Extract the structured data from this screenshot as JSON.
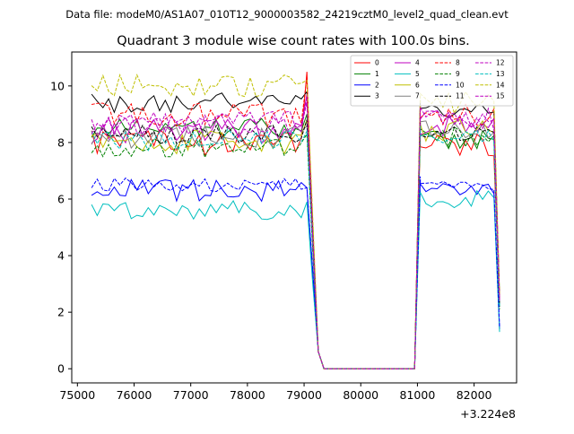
{
  "suptitle": "Data file: modeM0/AS1A07_010T12_9000003582_24219cztM0_level2_quad_clean.evt",
  "chart_data": {
    "type": "line",
    "title": "Quadrant 3 module wise count rates with 100.0s bins.",
    "xlabel": "",
    "ylabel": "",
    "x_offset_label": "+3.224e8",
    "xlim": [
      74900,
      82750
    ],
    "ylim": [
      -0.5,
      11.2
    ],
    "x_ticks": [
      75000,
      76000,
      77000,
      78000,
      79000,
      80000,
      81000,
      82000
    ],
    "x_tick_labels": [
      "75000",
      "76000",
      "77000",
      "78000",
      "79000",
      "80000",
      "81000",
      "82000"
    ],
    "y_ticks": [
      0,
      2,
      4,
      6,
      8,
      10
    ],
    "y_tick_labels": [
      "0",
      "2",
      "4",
      "6",
      "8",
      "10"
    ],
    "grid": false,
    "legend_position": "top-right",
    "x_segments": [
      {
        "start": 75250,
        "end": 79050,
        "step": 100
      },
      {
        "x": [
          79150,
          79250,
          79350
        ]
      },
      {
        "start": 79350,
        "end": 80950,
        "step": 100,
        "flat": 0
      },
      {
        "x": [
          81050
        ]
      },
      {
        "start": 81050,
        "end": 82350,
        "step": 100
      },
      {
        "x": [
          82450
        ]
      }
    ],
    "series": [
      {
        "name": "0",
        "color": "#ff0000",
        "dash": "solid",
        "level1": 8.0,
        "var1": 0.45,
        "level2": 7.9,
        "var2": 0.4,
        "peak": 10.5,
        "tail": 2.4
      },
      {
        "name": "1",
        "color": "#008000",
        "dash": "solid",
        "level1": 8.5,
        "var1": 0.35,
        "level2": 8.1,
        "var2": 0.35,
        "peak": 9.0,
        "tail": 2.2
      },
      {
        "name": "2",
        "color": "#0000ff",
        "dash": "solid",
        "level1": 6.3,
        "var1": 0.4,
        "level2": 6.4,
        "var2": 0.25,
        "peak": 6.4,
        "tail": 1.4
      },
      {
        "name": "3",
        "color": "#000000",
        "dash": "solid",
        "level1": 9.4,
        "var1": 0.35,
        "level2": 9.2,
        "var2": 0.35,
        "peak": 9.8,
        "tail": 2.6
      },
      {
        "name": "4",
        "color": "#bf00bf",
        "dash": "solid",
        "level1": 8.4,
        "var1": 0.45,
        "level2": 8.6,
        "var2": 0.4,
        "peak": 9.7,
        "tail": 2.4
      },
      {
        "name": "5",
        "color": "#00bfbf",
        "dash": "solid",
        "level1": 5.6,
        "var1": 0.35,
        "level2": 6.0,
        "var2": 0.3,
        "peak": 5.9,
        "tail": 1.3
      },
      {
        "name": "6",
        "color": "#bfbf00",
        "dash": "solid",
        "level1": 8.0,
        "var1": 0.45,
        "level2": 8.4,
        "var2": 0.4,
        "peak": 8.8,
        "tail": 2.3
      },
      {
        "name": "7",
        "color": "#808080",
        "dash": "solid",
        "level1": 8.2,
        "var1": 0.4,
        "level2": 8.5,
        "var2": 0.35,
        "peak": 8.6,
        "tail": 2.3
      },
      {
        "name": "8",
        "color": "#ff0000",
        "dash": "dashed",
        "level1": 9.0,
        "var1": 0.45,
        "level2": 9.0,
        "var2": 0.4,
        "peak": 10.3,
        "tail": 2.5
      },
      {
        "name": "9",
        "color": "#008000",
        "dash": "dashed",
        "level1": 7.8,
        "var1": 0.35,
        "level2": 8.2,
        "var2": 0.35,
        "peak": 8.3,
        "tail": 2.1
      },
      {
        "name": "10",
        "color": "#0000ff",
        "dash": "dashed",
        "level1": 6.5,
        "var1": 0.25,
        "level2": 6.5,
        "var2": 0.25,
        "peak": 6.4,
        "tail": 1.5
      },
      {
        "name": "11",
        "color": "#000000",
        "dash": "dashed",
        "level1": 8.3,
        "var1": 0.35,
        "level2": 8.4,
        "var2": 0.35,
        "peak": 8.8,
        "tail": 2.2
      },
      {
        "name": "12",
        "color": "#bf00bf",
        "dash": "dashed",
        "level1": 8.6,
        "var1": 0.4,
        "level2": 8.8,
        "var2": 0.4,
        "peak": 9.6,
        "tail": 2.4
      },
      {
        "name": "13",
        "color": "#00bfbf",
        "dash": "dashed",
        "level1": 8.1,
        "var1": 0.4,
        "level2": 8.3,
        "var2": 0.35,
        "peak": 8.4,
        "tail": 2.2
      },
      {
        "name": "14",
        "color": "#bfbf00",
        "dash": "dashed",
        "level1": 10.0,
        "var1": 0.4,
        "level2": 9.4,
        "var2": 0.4,
        "peak": 10.2,
        "tail": 2.6
      },
      {
        "name": "15",
        "color": "#bf00bf",
        "dash": "dashed",
        "level1": 8.7,
        "var1": 0.4,
        "level2": 8.9,
        "var2": 0.4,
        "peak": 9.4,
        "tail": 2.4
      }
    ]
  }
}
